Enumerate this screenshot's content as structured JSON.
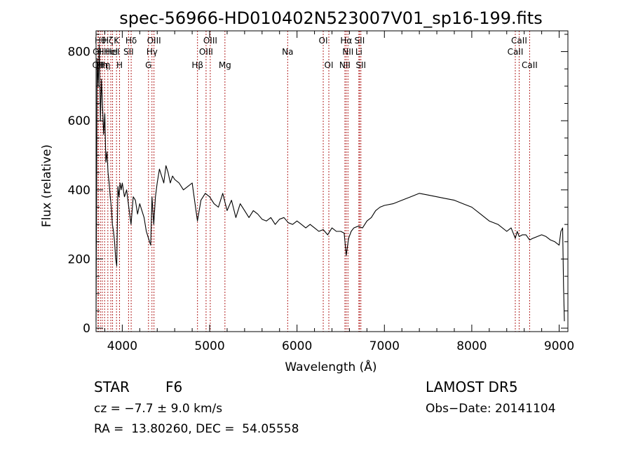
{
  "chart_data": {
    "type": "line",
    "title": "spec-56966-HD010402N523007V01_sp16-199.fits",
    "xlabel": "Wavelength (Å)",
    "ylabel": "Flux (relative)",
    "xlim": [
      3700,
      9100
    ],
    "ylim": [
      -10,
      860
    ],
    "xticks": [
      4000,
      5000,
      6000,
      7000,
      8000,
      9000
    ],
    "yticks": [
      0,
      200,
      400,
      600,
      800
    ],
    "line_color": "#000000",
    "marker_color": "#b22222",
    "series": [
      {
        "x": [
          3700,
          3712,
          3725,
          3737,
          3750,
          3762,
          3775,
          3787,
          3800,
          3812,
          3825,
          3837,
          3850,
          3862,
          3875,
          3887,
          3900,
          3912,
          3925,
          3937,
          3950,
          3962,
          3975,
          3987,
          4000,
          4025,
          4050,
          4075,
          4100,
          4125,
          4150,
          4175,
          4200,
          4225,
          4250,
          4275,
          4300,
          4325,
          4340,
          4360,
          4380,
          4400,
          4425,
          4450,
          4475,
          4500,
          4525,
          4550,
          4575,
          4600,
          4650,
          4700,
          4750,
          4800,
          4860,
          4900,
          4950,
          5000,
          5050,
          5100,
          5150,
          5200,
          5250,
          5300,
          5350,
          5400,
          5450,
          5500,
          5550,
          5600,
          5650,
          5700,
          5750,
          5800,
          5850,
          5900,
          5950,
          6000,
          6050,
          6100,
          6150,
          6200,
          6250,
          6300,
          6350,
          6400,
          6450,
          6500,
          6540,
          6563,
          6590,
          6620,
          6650,
          6700,
          6750,
          6800,
          6850,
          6900,
          6950,
          7000,
          7100,
          7200,
          7300,
          7400,
          7500,
          7600,
          7700,
          7800,
          7900,
          8000,
          8100,
          8200,
          8300,
          8400,
          8450,
          8498,
          8520,
          8542,
          8580,
          8620,
          8662,
          8700,
          8750,
          8800,
          8850,
          8900,
          8950,
          9000,
          9020,
          9040,
          9050,
          9060
        ],
        "y": [
          20,
          780,
          700,
          820,
          600,
          720,
          640,
          560,
          620,
          480,
          510,
          450,
          420,
          380,
          350,
          300,
          280,
          250,
          200,
          180,
          410,
          380,
          420,
          400,
          420,
          380,
          400,
          350,
          300,
          380,
          370,
          330,
          360,
          340,
          320,
          280,
          260,
          240,
          380,
          300,
          380,
          420,
          460,
          440,
          420,
          470,
          450,
          420,
          440,
          430,
          420,
          400,
          410,
          420,
          310,
          370,
          390,
          380,
          360,
          350,
          390,
          340,
          370,
          320,
          360,
          340,
          320,
          340,
          330,
          315,
          310,
          320,
          300,
          315,
          320,
          305,
          300,
          310,
          300,
          290,
          300,
          290,
          280,
          285,
          270,
          290,
          280,
          280,
          275,
          210,
          260,
          280,
          290,
          295,
          290,
          310,
          320,
          340,
          350,
          355,
          360,
          370,
          380,
          390,
          385,
          380,
          375,
          370,
          360,
          350,
          330,
          310,
          300,
          280,
          290,
          260,
          280,
          265,
          270,
          270,
          255,
          260,
          265,
          270,
          265,
          255,
          250,
          240,
          280,
          290,
          120,
          20
        ]
      }
    ],
    "lines": [
      {
        "x": 3722,
        "label": "OII",
        "row": 3
      },
      {
        "x": 3727,
        "label": "OII",
        "row": 2
      },
      {
        "x": 3750,
        "label": "Hθ",
        "row": 1
      },
      {
        "x": 3771,
        "label": "Hη",
        "row": 3
      },
      {
        "x": 3798,
        "label": "Hη",
        "row": 3
      },
      {
        "x": 3835,
        "label": "Hζ",
        "row": 1
      },
      {
        "x": 3869,
        "label": "HeI",
        "row": 2
      },
      {
        "x": 3889,
        "label": "HeI",
        "row": 2
      },
      {
        "x": 3934,
        "label": "K",
        "row": 1
      },
      {
        "x": 3969,
        "label": "H",
        "row": 3
      },
      {
        "x": 4072,
        "label": "SII",
        "row": 2
      },
      {
        "x": 4102,
        "label": "Hδ",
        "row": 1
      },
      {
        "x": 4300,
        "label": "G",
        "row": 3
      },
      {
        "x": 4340,
        "label": "Hγ",
        "row": 2
      },
      {
        "x": 4363,
        "label": "OIII",
        "row": 1
      },
      {
        "x": 4861,
        "label": "Hβ",
        "row": 3
      },
      {
        "x": 4959,
        "label": "OIII",
        "row": 2
      },
      {
        "x": 5007,
        "label": "OIII",
        "row": 1
      },
      {
        "x": 5175,
        "label": "Mg",
        "row": 3
      },
      {
        "x": 5893,
        "label": "Na",
        "row": 2
      },
      {
        "x": 6300,
        "label": "OI",
        "row": 1
      },
      {
        "x": 6364,
        "label": "OI",
        "row": 3
      },
      {
        "x": 6548,
        "label": "NII",
        "row": 3
      },
      {
        "x": 6563,
        "label": "Hα",
        "row": 1
      },
      {
        "x": 6583,
        "label": "NII",
        "row": 2
      },
      {
        "x": 6708,
        "label": "Li",
        "row": 2
      },
      {
        "x": 6716,
        "label": "SII",
        "row": 1
      },
      {
        "x": 6731,
        "label": "SII",
        "row": 3
      },
      {
        "x": 8498,
        "label": "CaII",
        "row": 2
      },
      {
        "x": 8542,
        "label": "CaII",
        "row": 1
      },
      {
        "x": 8662,
        "label": "CaII",
        "row": 3
      }
    ]
  },
  "info": {
    "class": "STAR",
    "subclass": "F6",
    "cz": "cz = −7.7 ± 9.0 km/s",
    "coords": "RA =  13.80260, DEC =  54.05558",
    "survey": "LAMOST DR5",
    "obs_date": "Obs−Date: 20141104"
  }
}
